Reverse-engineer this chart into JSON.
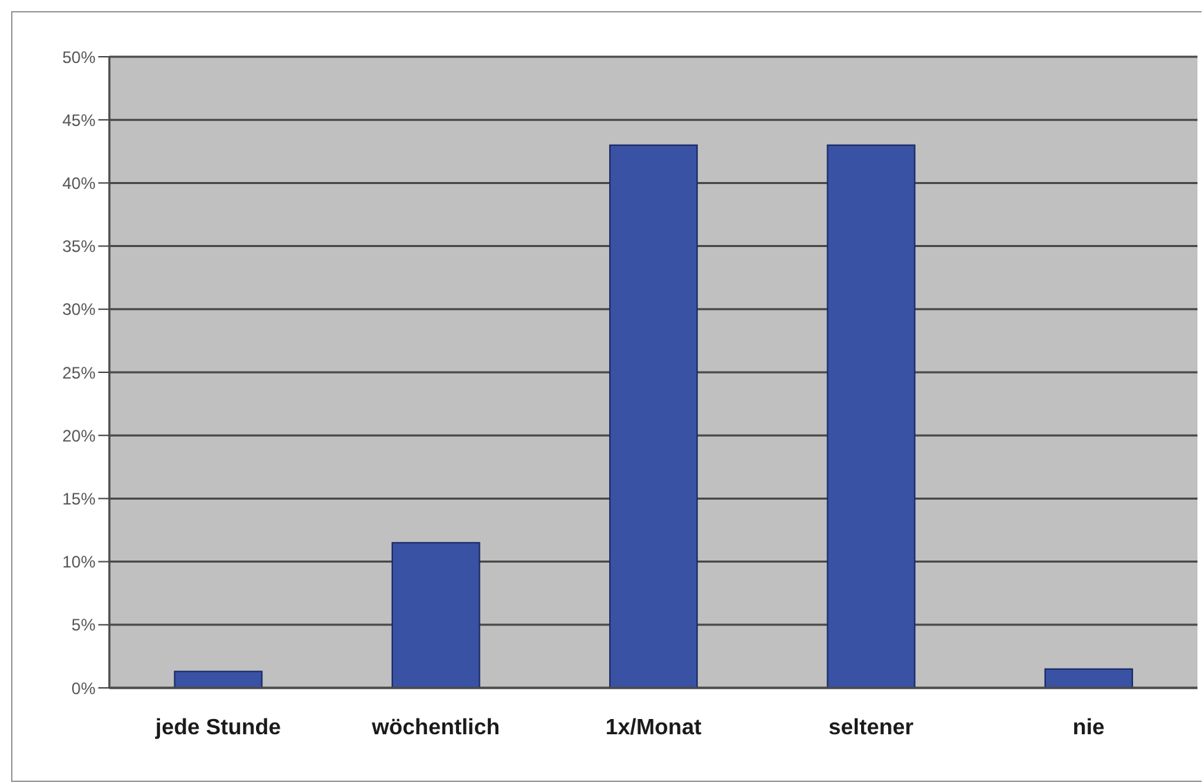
{
  "chart_data": {
    "type": "bar",
    "categories": [
      "jede Stunde",
      "wöchentlich",
      "1x/Monat",
      "seltener",
      "nie"
    ],
    "values": [
      1.3,
      11.5,
      43,
      43,
      1.5
    ],
    "color": "#3a52a4",
    "ylim": [
      0,
      50
    ],
    "yticks": [
      {
        "value": 0,
        "label": "0%"
      },
      {
        "value": 5,
        "label": "5%"
      },
      {
        "value": 10,
        "label": "10%"
      },
      {
        "value": 15,
        "label": "15%"
      },
      {
        "value": 20,
        "label": "20%"
      },
      {
        "value": 25,
        "label": "25%"
      },
      {
        "value": 30,
        "label": "30%"
      },
      {
        "value": 35,
        "label": "35%"
      },
      {
        "value": 40,
        "label": "40%"
      },
      {
        "value": 45,
        "label": "45%"
      },
      {
        "value": 50,
        "label": "50%"
      }
    ],
    "grid": "y"
  }
}
